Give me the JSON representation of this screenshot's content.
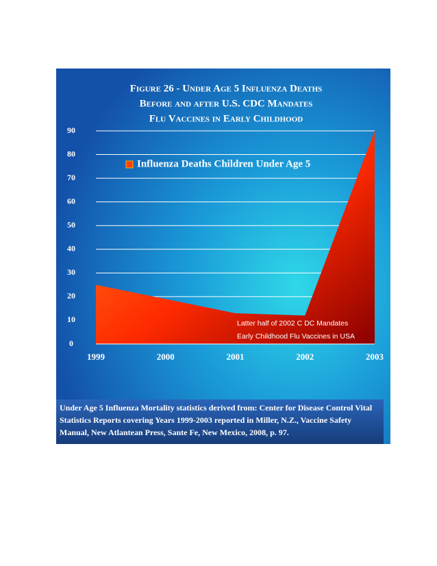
{
  "chart_data": {
    "type": "area",
    "title": [
      "Figure 26 - Under Age 5 Influenza Deaths",
      "Before and after U.S. CDC Mandates",
      "Flu Vaccines in Early Childhood"
    ],
    "x": [
      1999,
      2000,
      2001,
      2002,
      2003
    ],
    "xlim": [
      1999,
      2003
    ],
    "xticks": [
      1999,
      2000,
      2001,
      2002,
      2003
    ],
    "ylim": [
      0,
      90
    ],
    "yticks": [
      0,
      10,
      20,
      30,
      40,
      50,
      60,
      70,
      80,
      90
    ],
    "grid": true,
    "legend": "upper-center",
    "series": [
      {
        "name": "Influenza Deaths Children Under Age 5",
        "color": "#ff4010",
        "values": [
          25,
          19,
          13,
          12,
          90
        ]
      }
    ],
    "annotation": [
      "Latter half of 2002 C DC Mandates",
      "Early Childhood Flu Vaccines in USA"
    ],
    "source": "Under Age 5 Influenza Mortality statistics derived from: Center for Disease Control Vital Statistics Reports covering Years 1999-2003 reported in Miller, N.Z., Vaccine Safety Manual, New Atlantean Press,  Sante Fe, New Mexico, 2008, p. 97."
  }
}
